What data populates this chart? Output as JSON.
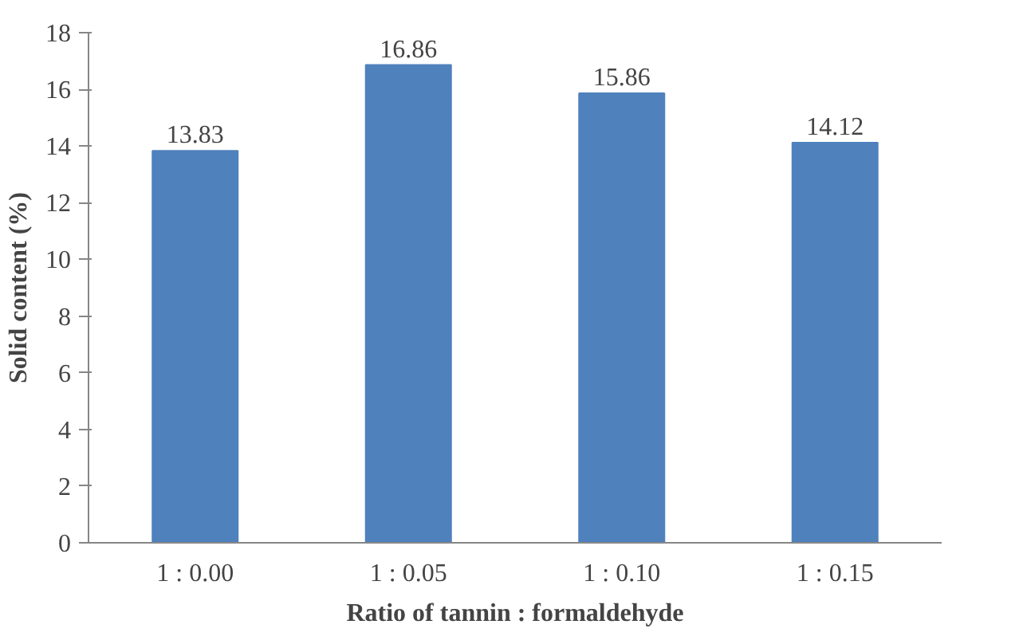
{
  "chart_data": {
    "type": "bar",
    "categories": [
      "1 : 0.00",
      "1 : 0.05",
      "1 : 0.10",
      "1 : 0.15"
    ],
    "values": [
      13.83,
      16.86,
      15.86,
      14.12
    ],
    "color": "#4f81bd",
    "xlabel": "Ratio of tannin : formaldehyde",
    "ylabel": "Solid content (%)",
    "ylim": [
      0,
      18
    ],
    "yticks": [
      0,
      2,
      4,
      6,
      8,
      10,
      12,
      14,
      16,
      18
    ],
    "data_labels": true,
    "grid": false
  }
}
